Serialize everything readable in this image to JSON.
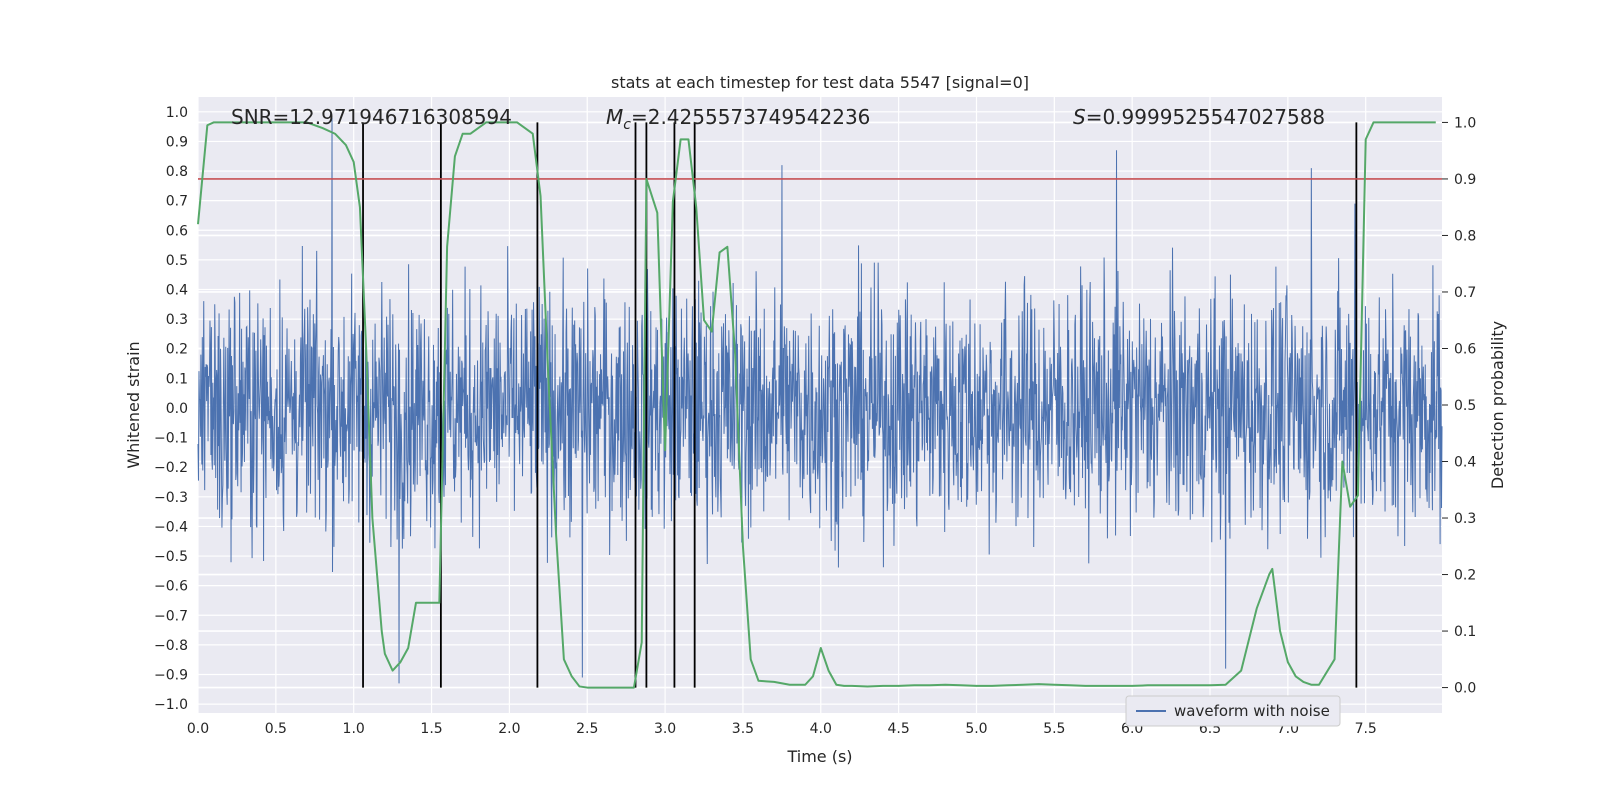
{
  "chart_data": {
    "type": "line",
    "title": "stats at each timestep for test data 5547 [signal=0]",
    "xlabel": "Time (s)",
    "ylabel_left": "Whitened strain",
    "ylabel_right": "Detection probability",
    "xlim": [
      0.0,
      7.99
    ],
    "ylim_left": [
      -1.03,
      1.05
    ],
    "ylim_right": [
      -0.045,
      1.045
    ],
    "x_ticks": [
      0.0,
      0.5,
      1.0,
      1.5,
      2.0,
      2.5,
      3.0,
      3.5,
      4.0,
      4.5,
      5.0,
      5.5,
      6.0,
      6.5,
      7.0,
      7.5
    ],
    "x_tick_labels": [
      "0.0",
      "0.5",
      "1.0",
      "1.5",
      "2.0",
      "2.5",
      "3.0",
      "3.5",
      "4.0",
      "4.5",
      "5.0",
      "5.5",
      "6.0",
      "6.5",
      "7.0",
      "7.5"
    ],
    "y_left_ticks": [
      1.0,
      0.9,
      0.8,
      0.7,
      0.6,
      0.5,
      0.4,
      0.3,
      0.2,
      0.1,
      0.0,
      -0.1,
      -0.2,
      -0.3,
      -0.4,
      -0.5,
      -0.6,
      -0.7,
      -0.8,
      -0.9,
      -1.0
    ],
    "y_left_tick_labels": [
      "1.0",
      "0.9",
      "0.8",
      "0.7",
      "0.6",
      "0.5",
      "0.4",
      "0.3",
      "0.2",
      "0.1",
      "0.0",
      "−0.1",
      "−0.2",
      "−0.3",
      "−0.4",
      "−0.5",
      "−0.6",
      "−0.7",
      "−0.8",
      "−0.9",
      "−1.0"
    ],
    "y_right_ticks": [
      1.0,
      0.9,
      0.8,
      0.7,
      0.6,
      0.5,
      0.4,
      0.3,
      0.2,
      0.1,
      0.0
    ],
    "y_right_tick_labels": [
      "1.0",
      "0.9",
      "0.8",
      "0.7",
      "0.6",
      "0.5",
      "0.4",
      "0.3",
      "0.2",
      "0.1",
      "0.0"
    ],
    "grid": true,
    "annotations": {
      "snr": "SNR=12.971946716308594",
      "mc_symbol": "M",
      "mc_sub": "c",
      "mc_value": "=2.4255573749542236",
      "s_symbol": "S",
      "s_value": "=0.9999525547027588"
    },
    "legend": {
      "placement": "lower-right",
      "entries": [
        "waveform with noise"
      ]
    },
    "threshold_line": {
      "axis": "right",
      "value": 0.9,
      "color": "#c44e52"
    },
    "vertical_lines": [
      1.06,
      1.56,
      2.18,
      2.81,
      2.88,
      3.06,
      3.19,
      7.44
    ],
    "waveform": {
      "name": "waveform with noise",
      "color": "#4c72b0",
      "x_range": [
        0.0,
        7.99
      ],
      "envelope_peaks": [
        {
          "t": 0.86,
          "y": 0.98
        },
        {
          "t": 1.06,
          "y": -0.93
        },
        {
          "t": 1.29,
          "y": -0.93
        },
        {
          "t": 2.47,
          "y": -0.91
        },
        {
          "t": 3.75,
          "y": 0.82
        },
        {
          "t": 5.9,
          "y": 0.87
        },
        {
          "t": 6.6,
          "y": -0.88
        },
        {
          "t": 7.15,
          "y": 0.81
        },
        {
          "t": 7.43,
          "y": 0.69
        }
      ]
    },
    "series": [
      {
        "name": "Detection probability",
        "axis": "right",
        "color": "#55a868",
        "x": [
          0.0,
          0.06,
          0.1,
          0.2,
          0.3,
          0.5,
          0.7,
          0.8,
          0.88,
          0.95,
          1.0,
          1.04,
          1.08,
          1.12,
          1.18,
          1.2,
          1.25,
          1.3,
          1.35,
          1.4,
          1.45,
          1.5,
          1.55,
          1.6,
          1.65,
          1.7,
          1.75,
          1.8,
          1.85,
          1.9,
          1.95,
          2.0,
          2.05,
          2.1,
          2.15,
          2.2,
          2.25,
          2.3,
          2.35,
          2.4,
          2.45,
          2.5,
          2.6,
          2.7,
          2.8,
          2.85,
          2.88,
          2.95,
          3.0,
          3.05,
          3.1,
          3.15,
          3.2,
          3.25,
          3.3,
          3.35,
          3.4,
          3.45,
          3.5,
          3.55,
          3.6,
          3.65,
          3.7,
          3.8,
          3.9,
          3.95,
          4.0,
          4.05,
          4.1,
          4.15,
          4.2,
          4.3,
          4.4,
          4.5,
          4.6,
          4.7,
          4.8,
          4.9,
          5.0,
          5.1,
          5.2,
          5.3,
          5.4,
          5.5,
          5.6,
          5.7,
          5.8,
          5.9,
          6.0,
          6.1,
          6.2,
          6.3,
          6.4,
          6.5,
          6.6,
          6.7,
          6.8,
          6.88,
          6.9,
          6.95,
          7.0,
          7.05,
          7.1,
          7.15,
          7.2,
          7.3,
          7.35,
          7.4,
          7.45,
          7.5,
          7.55,
          7.6,
          7.7,
          7.8,
          7.95
        ],
        "values": [
          0.82,
          0.995,
          1.0,
          1.0,
          1.0,
          1.0,
          1.0,
          0.99,
          0.98,
          0.96,
          0.93,
          0.85,
          0.6,
          0.3,
          0.1,
          0.06,
          0.03,
          0.045,
          0.07,
          0.15,
          0.15,
          0.15,
          0.15,
          0.78,
          0.94,
          0.98,
          0.98,
          0.99,
          1.0,
          1.0,
          1.0,
          1.0,
          1.0,
          0.99,
          0.98,
          0.87,
          0.55,
          0.27,
          0.05,
          0.02,
          0.002,
          0.0,
          0.0,
          0.0,
          0.0,
          0.08,
          0.9,
          0.84,
          0.42,
          0.86,
          0.97,
          0.97,
          0.85,
          0.65,
          0.63,
          0.77,
          0.78,
          0.59,
          0.25,
          0.05,
          0.012,
          0.011,
          0.01,
          0.005,
          0.005,
          0.02,
          0.07,
          0.03,
          0.005,
          0.003,
          0.003,
          0.002,
          0.003,
          0.003,
          0.004,
          0.004,
          0.005,
          0.004,
          0.003,
          0.003,
          0.004,
          0.005,
          0.006,
          0.005,
          0.004,
          0.003,
          0.003,
          0.003,
          0.003,
          0.004,
          0.004,
          0.004,
          0.004,
          0.004,
          0.005,
          0.03,
          0.14,
          0.2,
          0.21,
          0.1,
          0.045,
          0.02,
          0.01,
          0.005,
          0.005,
          0.05,
          0.4,
          0.32,
          0.34,
          0.97,
          1.0,
          1.0,
          1.0,
          1.0,
          1.0
        ]
      }
    ]
  }
}
